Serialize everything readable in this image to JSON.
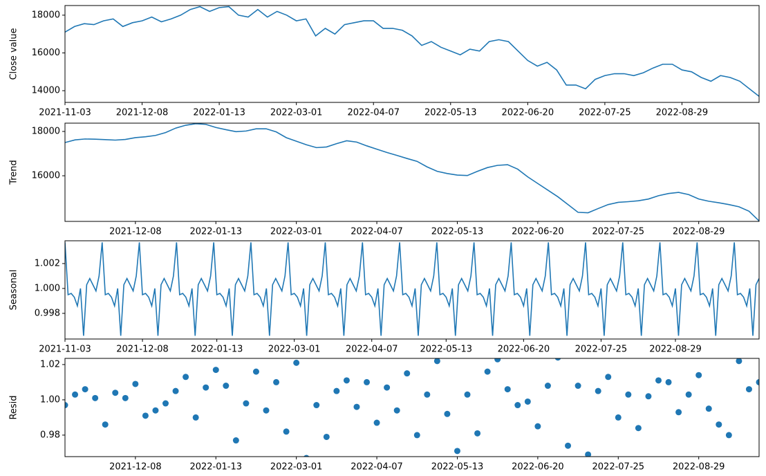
{
  "chart_data": [
    {
      "type": "line",
      "ylabel": "Close value",
      "color": "#1f77b4",
      "categories": [
        "2021-11-03",
        null,
        null,
        null,
        null,
        null,
        null,
        null,
        "2021-12-08",
        null,
        null,
        null,
        null,
        null,
        null,
        null,
        "2022-01-13",
        null,
        null,
        null,
        null,
        null,
        null,
        null,
        "2022-03-01",
        null,
        null,
        null,
        null,
        null,
        null,
        null,
        "2022-04-07",
        null,
        null,
        null,
        null,
        null,
        null,
        null,
        "2022-05-13",
        null,
        null,
        null,
        null,
        null,
        null,
        null,
        "2022-06-20",
        null,
        null,
        null,
        null,
        null,
        null,
        null,
        "2022-07-25",
        null,
        null,
        null,
        null,
        null,
        null,
        null,
        "2022-08-29",
        null,
        null,
        null,
        null,
        null,
        null,
        null,
        null
      ],
      "values": [
        17100,
        17400,
        17550,
        17500,
        17700,
        17800,
        17400,
        17600,
        17700,
        17900,
        17650,
        17800,
        18000,
        18300,
        18450,
        18200,
        18400,
        18450,
        18000,
        17900,
        18300,
        17900,
        18200,
        18000,
        17700,
        17800,
        16900,
        17300,
        17000,
        17500,
        17600,
        17700,
        17700,
        17300,
        17300,
        17200,
        16900,
        16400,
        16600,
        16300,
        16100,
        15900,
        16200,
        16100,
        16600,
        16700,
        16600,
        16100,
        15600,
        15300,
        15500,
        15100,
        14300,
        14300,
        14100,
        14600,
        14800,
        14900,
        14900,
        14800,
        14950,
        15200,
        15400,
        15400,
        15100,
        15000,
        14700,
        14500,
        14800,
        14700,
        14500,
        14100,
        13700
      ],
      "ylim": [
        13380,
        18510
      ],
      "yticks": [
        14000,
        16000,
        18000
      ]
    },
    {
      "type": "line",
      "ylabel": "Trend",
      "color": "#1f77b4",
      "categories": [
        null,
        null,
        null,
        null,
        null,
        null,
        null,
        "2021-12-08",
        null,
        null,
        null,
        null,
        null,
        null,
        null,
        "2022-01-13",
        null,
        null,
        null,
        null,
        null,
        null,
        null,
        "2022-03-01",
        null,
        null,
        null,
        null,
        null,
        null,
        null,
        "2022-04-07",
        null,
        null,
        null,
        null,
        null,
        null,
        null,
        "2022-05-13",
        null,
        null,
        null,
        null,
        null,
        null,
        null,
        "2022-06-20",
        null,
        null,
        null,
        null,
        null,
        null,
        null,
        "2022-07-25",
        null,
        null,
        null,
        null,
        null,
        null,
        null,
        "2022-08-29",
        null,
        null,
        null,
        null,
        null,
        null
      ],
      "values": [
        17500,
        17620,
        17660,
        17650,
        17630,
        17610,
        17640,
        17720,
        17760,
        17820,
        17950,
        18150,
        18280,
        18350,
        18320,
        18180,
        18080,
        17990,
        18020,
        18120,
        18120,
        17980,
        17720,
        17560,
        17400,
        17270,
        17300,
        17450,
        17580,
        17520,
        17350,
        17200,
        17050,
        16920,
        16780,
        16650,
        16400,
        16200,
        16100,
        16030,
        16010,
        16200,
        16370,
        16470,
        16500,
        16300,
        15950,
        15650,
        15350,
        15050,
        14700,
        14350,
        14330,
        14520,
        14700,
        14800,
        14830,
        14870,
        14950,
        15100,
        15200,
        15250,
        15150,
        14950,
        14850,
        14780,
        14700,
        14600,
        14400,
        13960
      ],
      "ylim": [
        13940,
        18375
      ],
      "yticks": [
        16000,
        18000
      ]
    },
    {
      "type": "line",
      "ylabel": "Seasonal",
      "color": "#1f77b4",
      "categories": [
        "2021-11-03",
        null,
        null,
        null,
        null,
        null,
        null,
        null,
        null,
        null,
        null,
        null,
        null,
        null,
        null,
        null,
        null,
        null,
        null,
        null,
        null,
        null,
        null,
        null,
        null,
        "2021-12-08",
        null,
        null,
        null,
        null,
        null,
        null,
        null,
        null,
        null,
        null,
        null,
        null,
        null,
        null,
        null,
        null,
        null,
        null,
        null,
        null,
        null,
        null,
        null,
        "2022-01-13",
        null,
        null,
        null,
        null,
        null,
        null,
        null,
        null,
        null,
        null,
        null,
        null,
        null,
        null,
        null,
        null,
        null,
        null,
        null,
        null,
        null,
        null,
        null,
        null,
        "2022-03-01",
        null,
        null,
        null,
        null,
        null,
        null,
        null,
        null,
        null,
        null,
        null,
        null,
        null,
        null,
        null,
        null,
        null,
        null,
        null,
        null,
        null,
        null,
        null,
        null,
        "2022-04-07",
        null,
        null,
        null,
        null,
        null,
        null,
        null,
        null,
        null,
        null,
        null,
        null,
        null,
        null,
        null,
        null,
        null,
        null,
        null,
        null,
        null,
        null,
        null,
        "2022-05-13",
        null,
        null,
        null,
        null,
        null,
        null,
        null,
        null,
        null,
        null,
        null,
        null,
        null,
        null,
        null,
        null,
        null,
        null,
        null,
        null,
        null,
        null,
        null,
        null,
        "2022-06-20",
        null,
        null,
        null,
        null,
        null,
        null,
        null,
        null,
        null,
        null,
        null,
        null,
        null,
        null,
        null,
        null,
        null,
        null,
        null,
        null,
        null,
        null,
        null,
        null,
        "2022-07-25",
        null,
        null,
        null,
        null,
        null,
        null,
        null,
        null,
        null,
        null,
        null,
        null,
        null,
        null,
        null,
        null,
        null,
        null,
        null,
        null,
        null,
        null,
        null,
        "2022-08-29",
        null,
        null,
        null,
        null,
        null,
        null,
        null,
        null,
        null,
        null,
        null,
        null,
        null,
        null,
        null,
        null,
        null,
        null,
        null,
        null,
        null,
        null,
        null,
        null,
        null,
        null,
        null
      ],
      "values": [
        1.0037,
        0.9995,
        0.9996,
        0.9993,
        0.9986,
        1.0,
        0.9962,
        1.0003,
        1.0008,
        1.0003,
        0.9998,
        1.001,
        1.0037,
        0.9995,
        0.9996,
        0.9993,
        0.9986,
        1.0,
        0.9962,
        1.0003,
        1.0008,
        1.0003,
        0.9998,
        1.001,
        1.0037,
        0.9995,
        0.9996,
        0.9993,
        0.9986,
        1.0,
        0.9962,
        1.0003,
        1.0008,
        1.0003,
        0.9998,
        1.001,
        1.0037,
        0.9995,
        0.9996,
        0.9993,
        0.9986,
        1.0,
        0.9962,
        1.0003,
        1.0008,
        1.0003,
        0.9998,
        1.001,
        1.0037,
        0.9995,
        0.9996,
        0.9993,
        0.9986,
        1.0,
        0.9962,
        1.0003,
        1.0008,
        1.0003,
        0.9998,
        1.001,
        1.0037,
        0.9995,
        0.9996,
        0.9993,
        0.9986,
        1.0,
        0.9962,
        1.0003,
        1.0008,
        1.0003,
        0.9998,
        1.001,
        1.0037,
        0.9995,
        0.9996,
        0.9993,
        0.9986,
        1.0,
        0.9962,
        1.0003,
        1.0008,
        1.0003,
        0.9998,
        1.001,
        1.0037,
        0.9995,
        0.9996,
        0.9993,
        0.9986,
        1.0,
        0.9962,
        1.0003,
        1.0008,
        1.0003,
        0.9998,
        1.001,
        1.0037,
        0.9995,
        0.9996,
        0.9993,
        0.9986,
        1.0,
        0.9962,
        1.0003,
        1.0008,
        1.0003,
        0.9998,
        1.001,
        1.0037,
        0.9995,
        0.9996,
        0.9993,
        0.9986,
        1.0,
        0.9962,
        1.0003,
        1.0008,
        1.0003,
        0.9998,
        1.001,
        1.0037,
        0.9995,
        0.9996,
        0.9993,
        0.9986,
        1.0,
        0.9962,
        1.0003,
        1.0008,
        1.0003,
        0.9998,
        1.001,
        1.0037,
        0.9995,
        0.9996,
        0.9993,
        0.9986,
        1.0,
        0.9962,
        1.0003,
        1.0008,
        1.0003,
        0.9998,
        1.001,
        1.0037,
        0.9995,
        0.9996,
        0.9993,
        0.9986,
        1.0,
        0.9962,
        1.0003,
        1.0008,
        1.0003,
        0.9998,
        1.001,
        1.0037,
        0.9995,
        0.9996,
        0.9993,
        0.9986,
        1.0,
        0.9962,
        1.0003,
        1.0008,
        1.0003,
        0.9998,
        1.001,
        1.0037,
        0.9995,
        0.9996,
        0.9993,
        0.9986,
        1.0,
        0.9962,
        1.0003,
        1.0008,
        1.0003,
        0.9998,
        1.001,
        1.0037,
        0.9995,
        0.9996,
        0.9993,
        0.9986,
        1.0,
        0.9962,
        1.0003,
        1.0008,
        1.0003,
        0.9998,
        1.001,
        1.0037,
        0.9995,
        0.9996,
        0.9993,
        0.9986,
        1.0,
        0.9962,
        1.0003,
        1.0008,
        1.0003,
        0.9998,
        1.001,
        1.0037,
        0.9995,
        0.9996,
        0.9993,
        0.9986,
        1.0,
        0.9962,
        1.0003,
        1.0008,
        1.0003,
        0.9998,
        1.001,
        1.0037,
        0.9995,
        0.9996,
        0.9993,
        0.9986,
        1.0,
        0.9962,
        1.0003,
        1.0008
      ],
      "ylim": [
        0.99594,
        1.00383
      ],
      "yticks": [
        0.998,
        {
          "value": 1,
          "label": "1.000"
        },
        1.002
      ]
    },
    {
      "type": "scatter",
      "ylabel": "Resid",
      "color": "#1f77b4",
      "categories": [
        null,
        null,
        null,
        null,
        null,
        null,
        null,
        "2021-12-08",
        null,
        null,
        null,
        null,
        null,
        null,
        null,
        "2022-01-13",
        null,
        null,
        null,
        null,
        null,
        null,
        null,
        "2022-03-01",
        null,
        null,
        null,
        null,
        null,
        null,
        null,
        "2022-04-07",
        null,
        null,
        null,
        null,
        null,
        null,
        null,
        "2022-05-13",
        null,
        null,
        null,
        null,
        null,
        null,
        null,
        "2022-06-20",
        null,
        null,
        null,
        null,
        null,
        null,
        null,
        "2022-07-25",
        null,
        null,
        null,
        null,
        null,
        null,
        null,
        "2022-08-29",
        null,
        null,
        null,
        null,
        null,
        null
      ],
      "values": [
        0.997,
        1.003,
        1.006,
        1.001,
        0.986,
        1.004,
        1.001,
        1.009,
        0.991,
        0.994,
        0.998,
        1.005,
        1.013,
        0.99,
        1.007,
        1.017,
        1.008,
        0.977,
        0.998,
        1.016,
        0.994,
        1.01,
        0.982,
        1.021,
        0.967,
        0.997,
        0.979,
        1.005,
        1.011,
        0.996,
        1.01,
        0.987,
        1.007,
        0.994,
        1.015,
        0.98,
        1.003,
        1.022,
        0.992,
        0.971,
        1.003,
        0.981,
        1.016,
        1.023,
        1.006,
        0.997,
        0.999,
        0.985,
        1.008,
        1.024,
        0.974,
        1.008,
        0.969,
        1.005,
        1.013,
        0.99,
        1.003,
        0.984,
        1.002,
        1.011,
        1.01,
        0.993,
        1.003,
        1.014,
        0.995,
        0.986,
        0.98,
        1.022,
        1.006,
        1.01
      ],
      "ylim": [
        0.9678,
        1.0235
      ],
      "yticks": [
        0.98,
        {
          "value": 1,
          "label": "1.00"
        },
        1.02
      ]
    }
  ]
}
